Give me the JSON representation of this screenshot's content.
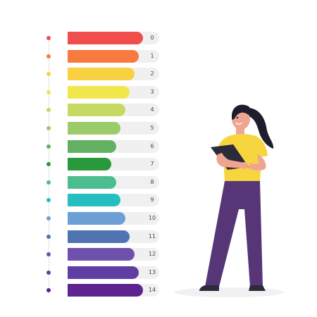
{
  "scale": {
    "items": [
      {
        "label": "0",
        "level": 0.82,
        "color": "#f04e4c"
      },
      {
        "label": "1",
        "level": 0.78,
        "color": "#f77a3e"
      },
      {
        "label": "2",
        "level": 0.73,
        "color": "#f8d141"
      },
      {
        "label": "3",
        "level": 0.68,
        "color": "#f2e64d"
      },
      {
        "label": "4",
        "level": 0.63,
        "color": "#c6d963"
      },
      {
        "label": "5",
        "level": 0.58,
        "color": "#9ccc6a"
      },
      {
        "label": "6",
        "level": 0.53,
        "color": "#63b063"
      },
      {
        "label": "7",
        "level": 0.48,
        "color": "#289a3c"
      },
      {
        "label": "8",
        "level": 0.53,
        "color": "#4cbd8e"
      },
      {
        "label": "9",
        "level": 0.58,
        "color": "#25bfbf"
      },
      {
        "label": "10",
        "level": 0.63,
        "color": "#6c9fd3"
      },
      {
        "label": "11",
        "level": 0.68,
        "color": "#5073b2"
      },
      {
        "label": "12",
        "level": 0.73,
        "color": "#6e51ad"
      },
      {
        "label": "13",
        "level": 0.78,
        "color": "#5f3ea4"
      },
      {
        "label": "14",
        "level": 0.82,
        "color": "#5d2391"
      }
    ]
  },
  "illustration": {
    "shirt_color": "#f7d53f",
    "pants_color": "#563677",
    "hair_color": "#1d1d2b",
    "skin_color": "#f0a593",
    "clipboard_color": "#2b2b3c"
  }
}
